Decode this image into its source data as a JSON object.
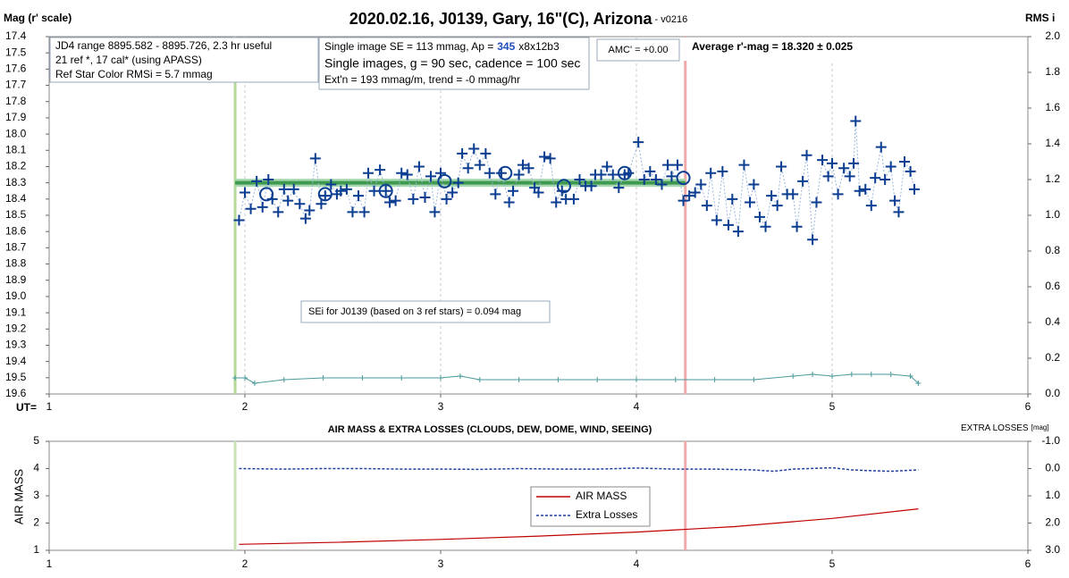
{
  "chart_data": [
    {
      "type": "scatter",
      "title": "2020.02.16, J0139, Gary, 16\"(C), Arizona",
      "subtitle": " - v0216",
      "ylabel": "Mag (r' scale)",
      "y2label": "RMS i",
      "xlabel": "UT=",
      "xlim": [
        1,
        6
      ],
      "xticks": [
        1,
        2,
        3,
        4,
        5,
        6
      ],
      "ylim": [
        17.4,
        19.6
      ],
      "yticks": [
        17.4,
        17.5,
        17.6,
        17.7,
        17.8,
        17.9,
        {
          "value": 18,
          "label": "18.0"
        },
        18.1,
        18.2,
        18.3,
        18.4,
        18.5,
        18.6,
        18.7,
        18.8,
        18.9,
        {
          "value": 19,
          "label": "19.0"
        },
        19.1,
        19.2,
        19.3,
        19.4,
        19.5,
        19.6
      ],
      "y2lim": [
        0,
        2
      ],
      "y2ticks": [
        {
          "value": 0,
          "label": "0.0"
        },
        0.2,
        0.4,
        0.6,
        0.8,
        {
          "value": 1,
          "label": "1.0"
        },
        1.2,
        1.4,
        1.6,
        1.8,
        {
          "value": 2,
          "label": "2.0"
        }
      ],
      "grid": true,
      "series": [
        {
          "marker": "plus",
          "color": "#0b3d91",
          "x": [
            1.97,
            2.0,
            2.03,
            2.06,
            2.09,
            2.12,
            2.14,
            2.17,
            2.2,
            2.22,
            2.25,
            2.28,
            2.31,
            2.33,
            2.36,
            2.39,
            2.41,
            2.44,
            2.47,
            2.49,
            2.52,
            2.55,
            2.58,
            2.61,
            2.63,
            2.66,
            2.69,
            2.72,
            2.74,
            2.77,
            2.8,
            2.83,
            2.86,
            2.89,
            2.92,
            2.95,
            2.97,
            3.0,
            3.03,
            3.06,
            3.09,
            3.11,
            3.14,
            3.17,
            3.2,
            3.23,
            3.25,
            3.28,
            3.31,
            3.35,
            3.37,
            3.4,
            3.42,
            3.45,
            3.48,
            3.5,
            3.53,
            3.56,
            3.59,
            3.62,
            3.64,
            3.68,
            3.71,
            3.74,
            3.77,
            3.79,
            3.82,
            3.85,
            3.88,
            3.91,
            3.94,
            3.96,
            4.01,
            4.04,
            4.07,
            4.1,
            4.13,
            4.16,
            4.18,
            4.21,
            4.24,
            4.27,
            4.3,
            4.33,
            4.36,
            4.38,
            4.41,
            4.44,
            4.47,
            4.49,
            4.52,
            4.55,
            4.58,
            4.6,
            4.63,
            4.66,
            4.69,
            4.72,
            4.74,
            4.77,
            4.8,
            4.82,
            4.85,
            4.87,
            4.9,
            4.92,
            4.95,
            4.98,
            5.0,
            5.03,
            5.06,
            5.09,
            5.11,
            5.12,
            5.14,
            5.17,
            5.2,
            5.22,
            5.25,
            5.27,
            5.3,
            5.32,
            5.34,
            5.37,
            5.4,
            5.42
          ],
          "values": [
            18.53,
            18.36,
            18.46,
            18.29,
            18.45,
            18.28,
            18.4,
            18.48,
            18.34,
            18.41,
            18.34,
            18.43,
            18.52,
            18.47,
            18.15,
            18.43,
            18.38,
            18.31,
            18.37,
            18.35,
            18.34,
            18.48,
            18.38,
            18.48,
            18.24,
            18.35,
            18.22,
            18.35,
            18.42,
            18.41,
            18.24,
            18.25,
            18.4,
            18.2,
            18.39,
            18.26,
            18.48,
            18.24,
            18.4,
            18.36,
            18.3,
            18.12,
            18.21,
            18.09,
            18.19,
            18.12,
            18.24,
            18.37,
            18.24,
            18.42,
            18.35,
            18.25,
            18.19,
            18.21,
            18.33,
            18.36,
            18.14,
            18.15,
            18.42,
            18.35,
            18.4,
            18.4,
            18.28,
            18.32,
            18.32,
            18.25,
            18.25,
            18.2,
            18.25,
            18.33,
            18.25,
            18.24,
            18.05,
            18.28,
            18.23,
            18.28,
            18.31,
            18.19,
            18.26,
            18.19,
            18.41,
            18.38,
            18.36,
            18.31,
            18.44,
            18.24,
            18.53,
            18.23,
            18.56,
            18.4,
            18.6,
            18.19,
            18.42,
            18.31,
            18.51,
            18.57,
            18.38,
            18.44,
            18.2,
            18.37,
            18.37,
            18.57,
            18.29,
            18.13,
            18.65,
            18.42,
            18.16,
            18.26,
            18.18,
            18.37,
            18.21,
            18.26,
            18.18,
            17.92,
            18.35,
            18.34,
            18.44,
            18.27,
            18.08,
            18.28,
            18.2,
            18.41,
            18.48,
            18.17,
            18.23,
            18.34
          ]
        },
        {
          "marker": "circle",
          "color": "#0b3d91",
          "x": [
            2.11,
            2.41,
            2.72,
            3.02,
            3.33,
            3.63,
            3.94,
            4.24
          ],
          "values": [
            18.37,
            18.37,
            18.35,
            18.29,
            18.24,
            18.32,
            18.24,
            18.27
          ]
        },
        {
          "marker": "smallplus",
          "color": "#4a9a9a",
          "axis": "y2",
          "x": [
            1.95,
            2.0,
            2.05,
            2.2,
            2.4,
            2.6,
            2.8,
            3.0,
            3.1,
            3.2,
            3.4,
            3.6,
            3.8,
            4.0,
            4.2,
            4.4,
            4.6,
            4.8,
            4.9,
            5.0,
            5.1,
            5.2,
            5.3,
            5.4,
            5.44
          ],
          "values": [
            0.09,
            0.09,
            0.06,
            0.08,
            0.09,
            0.09,
            0.09,
            0.09,
            0.1,
            0.08,
            0.08,
            0.08,
            0.08,
            0.08,
            0.08,
            0.08,
            0.08,
            0.1,
            0.11,
            0.1,
            0.11,
            0.11,
            0.11,
            0.1,
            0.06
          ]
        }
      ],
      "fit": {
        "x": [
          1.95,
          4.25
        ],
        "value": 18.3,
        "color": "#3f9a4f"
      },
      "markers": [
        {
          "x": 1.95,
          "color": "#b5d99a"
        },
        {
          "x": 4.25,
          "color": "#f2a9a9"
        }
      ],
      "annotations": [
        "JD4 range 8895.582 - 8895.726, 2.3 hr useful",
        "21 ref *, 17 cal* (using APASS)",
        "Ref Star Color RMSi = 5.7 mmag",
        "Single image SE = 113 mmag, Ap =",
        "345",
        "x8x12b3",
        "Single images, g = 90 sec, cadence = 100 sec",
        "Ext'n = 193 mmag/m, trend = -0 mmag/hr",
        "AMC' = +0.00",
        "Average r'-mag =  18.320 ± 0.025",
        "SEi for J0139 (based on 3 ref stars) = 0.094 mag"
      ]
    },
    {
      "type": "line",
      "title": "AIR MASS & EXTRA LOSSES (CLOUDS, DEW, DOME, WIND, SEEING)",
      "ylabel": "AIR MASS",
      "y2label": "EXTRA LOSSES",
      "y2unit": "[mag]",
      "xlim": [
        1,
        6
      ],
      "xticks": [
        1,
        2,
        3,
        4,
        5,
        6
      ],
      "ylim": [
        1,
        5
      ],
      "yticks": [
        1,
        2,
        3,
        4,
        5
      ],
      "y2lim": [
        -1,
        3
      ],
      "y2ticks": [
        {
          "value": -1,
          "label": "-1.0"
        },
        {
          "value": 0,
          "label": "0.0"
        },
        {
          "value": 1,
          "label": "1.0"
        },
        {
          "value": 2,
          "label": "2.0"
        },
        {
          "value": 3,
          "label": "3.0"
        }
      ],
      "series": [
        {
          "name": "AIR MASS",
          "color": "#c00000",
          "x": [
            1.97,
            2.5,
            3.0,
            3.5,
            4.0,
            4.5,
            5.0,
            5.44
          ],
          "values": [
            1.22,
            1.3,
            1.4,
            1.52,
            1.67,
            1.87,
            2.17,
            2.52
          ]
        },
        {
          "name": "Extra Losses",
          "color": "#1f3f9f",
          "axis": "y2",
          "dashed": true,
          "x": [
            1.97,
            2.2,
            2.4,
            2.6,
            2.8,
            3.0,
            3.2,
            3.4,
            3.6,
            3.8,
            4.0,
            4.2,
            4.4,
            4.6,
            4.7,
            4.8,
            5.0,
            5.1,
            5.2,
            5.3,
            5.44
          ],
          "values": [
            0.0,
            0.02,
            0.0,
            0.0,
            0.02,
            0.02,
            0.03,
            0.0,
            0.02,
            0.02,
            -0.02,
            0.02,
            0.02,
            0.05,
            0.1,
            0.02,
            -0.03,
            0.05,
            0.08,
            0.1,
            0.05
          ]
        }
      ],
      "markers": [
        {
          "x": 1.95,
          "color": "#c9e3b5"
        },
        {
          "x": 4.25,
          "color": "#f2a9a9"
        }
      ]
    }
  ]
}
